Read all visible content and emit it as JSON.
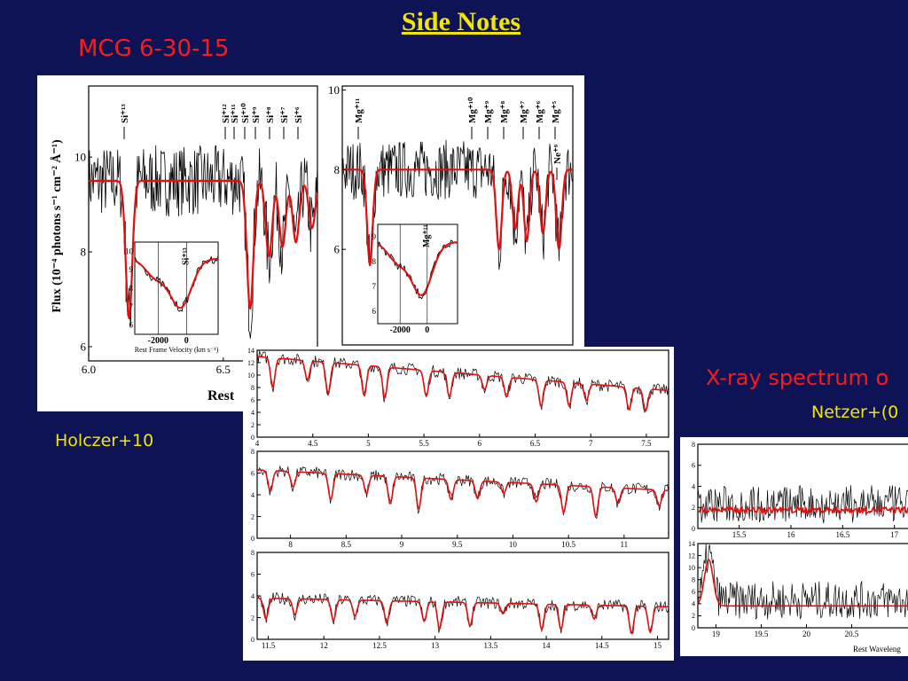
{
  "slide": {
    "title": "Side Notes",
    "label_top_left": "MCG 6-30-15",
    "citation_left": "Holczer+10",
    "label_right": "X-ray spectrum o",
    "citation_right": "Netzer+(0"
  },
  "colors": {
    "background": "#0d1354",
    "title": "#f2e600",
    "label_red": "#ff1a1a",
    "model": "#e01010",
    "data": "#000000"
  },
  "chart_data": [
    {
      "type": "line",
      "ylabel": "Flux (10⁻⁴ photons s⁻¹ cm⁻² Å⁻¹)",
      "xlabel": "Rest",
      "xlim": [
        6.0,
        6.85
      ],
      "ylim": [
        5.7,
        11.5
      ],
      "xticks": [
        "6.0",
        "6.5"
      ],
      "yticks": [
        "6",
        "8",
        "10"
      ],
      "continuum": 9.5,
      "lines": [
        {
          "x": 6.15,
          "d": 2.9
        },
        {
          "x": 6.6,
          "d": 2.7
        },
        {
          "x": 6.67,
          "d": 1.6
        },
        {
          "x": 6.72,
          "d": 1.4
        },
        {
          "x": 6.77,
          "d": 1.3
        },
        {
          "x": 6.83,
          "d": 1.0
        }
      ],
      "ion_labels": [
        "Si⁺¹³",
        "Si⁺¹²",
        "Si⁺¹¹",
        "Si⁺¹⁰",
        "Si⁺⁹",
        "Si⁺⁸",
        "Si⁺⁷",
        "Si⁺⁶"
      ],
      "inset": {
        "xlabel": "Rest Frame Velocity (km s⁻¹)",
        "xticks": [
          "-2000",
          "0"
        ],
        "yticks": [
          "6",
          "7",
          "8",
          "9",
          "10"
        ],
        "label": "Si⁺¹³"
      }
    },
    {
      "type": "line",
      "xlim": [
        8.3,
        9.3
      ],
      "ylim": [
        3.6,
        10.1
      ],
      "yticks": [
        "6",
        "8",
        "10"
      ],
      "continuum": 8.0,
      "lines": [
        {
          "x": 8.42,
          "d": 2.4
        },
        {
          "x": 8.98,
          "d": 2.0
        },
        {
          "x": 9.05,
          "d": 1.5
        },
        {
          "x": 9.1,
          "d": 1.8
        },
        {
          "x": 9.17,
          "d": 1.6
        },
        {
          "x": 9.24,
          "d": 2.0
        }
      ],
      "ion_labels": [
        "Mg⁺¹¹",
        "Mg⁺¹⁰",
        "Mg⁺⁹",
        "Mg⁺⁸",
        "Mg⁺⁷",
        "Mg⁺⁶",
        "Mg⁺⁵",
        "Ne⁺⁹"
      ],
      "inset": {
        "xticks": [
          "-2000",
          "0"
        ],
        "yticks": [
          "6",
          "7",
          "8",
          "9"
        ],
        "label": "Mg⁺¹¹"
      }
    },
    {
      "type": "line",
      "panels": [
        {
          "xlim": [
            4.0,
            7.7
          ],
          "ylim": [
            0,
            14
          ],
          "xticks": [
            "4",
            "4.5",
            "5",
            "5.5",
            "6",
            "6.5",
            "7",
            "7.5"
          ],
          "yticks": [
            "0",
            "2",
            "4",
            "6",
            "8",
            "10",
            "12",
            "14"
          ],
          "start": 13.0,
          "end": 7.5
        },
        {
          "xlim": [
            7.7,
            11.4
          ],
          "ylim": [
            0,
            8
          ],
          "xticks": [
            "8",
            "8.5",
            "9",
            "9.5",
            "10",
            "10.5",
            "11"
          ],
          "yticks": [
            "0",
            "2",
            "4",
            "6",
            "8"
          ],
          "start": 6.3,
          "end": 4.4
        },
        {
          "xlim": [
            11.4,
            15.1
          ],
          "ylim": [
            0,
            8
          ],
          "xticks": [
            "11.5",
            "12",
            "12.5",
            "13",
            "13.5",
            "14",
            "14.5",
            "15"
          ],
          "yticks": [
            "0",
            "2",
            "4",
            "6",
            "8"
          ],
          "start": 3.8,
          "end": 3.0
        }
      ]
    },
    {
      "type": "line",
      "xlabel": "Rest Waveleng",
      "panels": [
        {
          "xlim": [
            15.1,
            17.2
          ],
          "ylim": [
            0,
            8
          ],
          "xticks": [
            "15.5",
            "16",
            "16.5",
            "17"
          ],
          "yticks": [
            "0",
            "2",
            "4",
            "6",
            "8"
          ]
        },
        {
          "xlim": [
            18.8,
            21.2
          ],
          "ylim": [
            0,
            14
          ],
          "xticks": [
            "19",
            "19.5",
            "20",
            "20.5"
          ],
          "yticks": [
            "0",
            "2",
            "4",
            "6",
            "8",
            "10",
            "12",
            "14"
          ]
        }
      ]
    }
  ]
}
